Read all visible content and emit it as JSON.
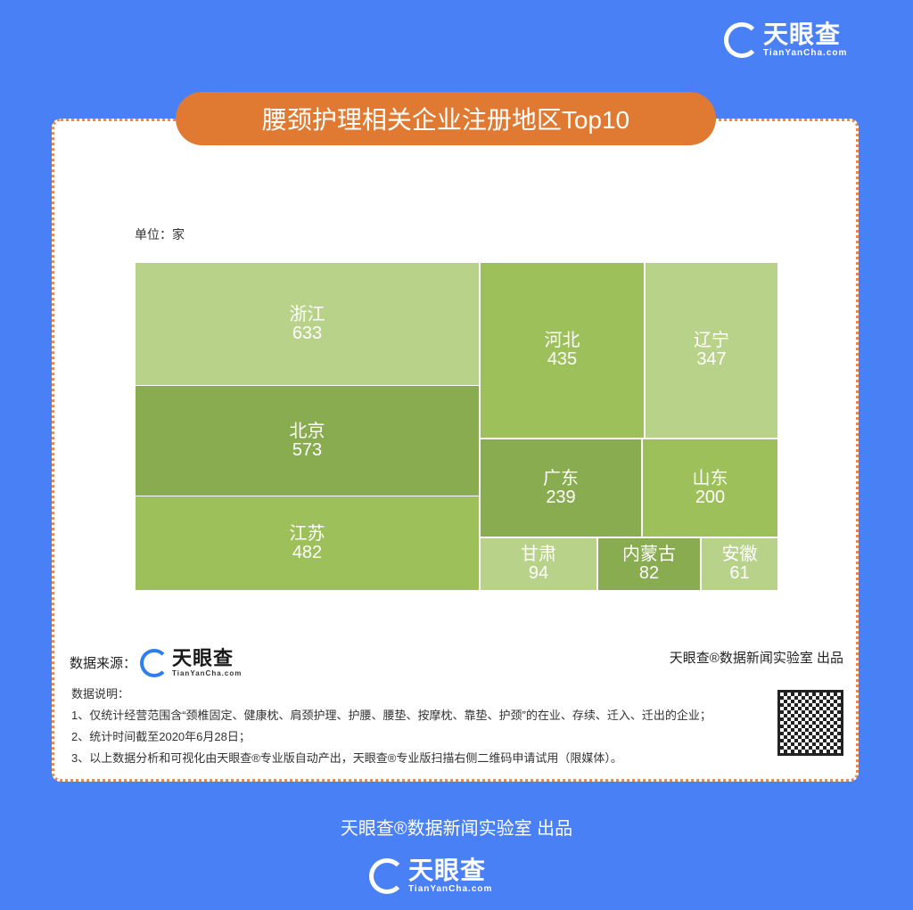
{
  "brand": {
    "name": "天眼查",
    "domain": "TianYanCha.com"
  },
  "title": "腰颈护理相关企业注册地区Top10",
  "colors": {
    "background": "#4a80f5",
    "title_pill": "#e07a32",
    "light": "#b9d28a",
    "medium": "#9dc05a",
    "dark": "#8aac50"
  },
  "chart_data": {
    "type": "treemap",
    "unit_label": "单位：家",
    "items": [
      {
        "name": "浙江",
        "value": 633,
        "shade": "light"
      },
      {
        "name": "北京",
        "value": 573,
        "shade": "dark"
      },
      {
        "name": "江苏",
        "value": 482,
        "shade": "medium"
      },
      {
        "name": "河北",
        "value": 435,
        "shade": "medium"
      },
      {
        "name": "辽宁",
        "value": 347,
        "shade": "light"
      },
      {
        "name": "广东",
        "value": 239,
        "shade": "dark"
      },
      {
        "name": "山东",
        "value": 200,
        "shade": "medium"
      },
      {
        "name": "甘肃",
        "value": 94,
        "shade": "light"
      },
      {
        "name": "内蒙古",
        "value": 82,
        "shade": "dark"
      },
      {
        "name": "安徽",
        "value": 61,
        "shade": "light"
      }
    ]
  },
  "source_label": "数据来源：",
  "producer": "天眼查®数据新闻实验室 出品",
  "notes": {
    "heading": "数据说明：",
    "lines": [
      "1、仅统计经营范围含“颈椎固定、健康枕、肩颈护理、护腰、腰垫、按摩枕、靠垫、护颈”的在业、存续、迁入、迁出的企业；",
      "2、统计时间截至2020年6月28日；",
      "3、以上数据分析和可视化由天眼查®专业版自动产出，天眼查®专业版扫描右侧二维码申请试用（限媒体）。"
    ]
  },
  "footer": "天眼查®数据新闻实验室 出品"
}
